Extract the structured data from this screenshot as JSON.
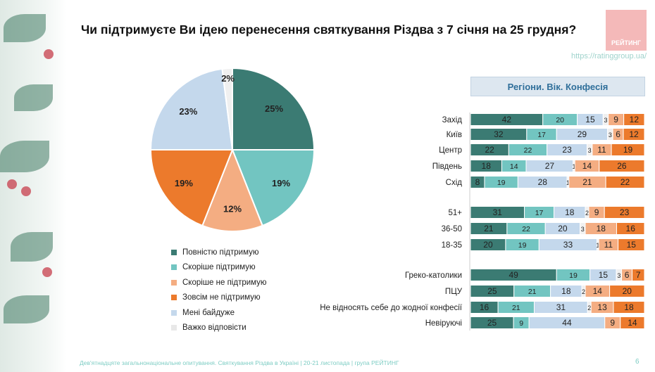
{
  "title": "Чи підтримуєте Ви ідею перенесення святкування Різдва з 7 січня на 25 грудня?",
  "logo_text": "РЕЙТИНГ",
  "url": "https://ratinggroup.ua/",
  "footer": "Дев'ятнадцяте загальнонаціональне опитування. Святкування Різдва в Україні | 20-21 листопада | група РЕЙТИНГ",
  "page_number": "6",
  "colors": {
    "full_support": "#3b7b73",
    "rather_support": "#72c5c1",
    "indifferent": "#c4d8ec",
    "hard_to_say": "#f0f0f0",
    "rather_not": "#f4ad82",
    "not_at_all": "#ec7a2c"
  },
  "chart_data": [
    {
      "type": "pie",
      "categories": [
        "Повністю підтримую",
        "Скоріше підтримую",
        "Скоріше не підтримую",
        "Зовсім не підтримую",
        "Мені байдуже",
        "Важко відповісти"
      ],
      "values": [
        25,
        19,
        12,
        19,
        23,
        2
      ],
      "labels": [
        "25%",
        "19%",
        "12%",
        "19%",
        "23%",
        "2%"
      ],
      "legend_position": "bottom"
    },
    {
      "type": "bar",
      "stacked": true,
      "orientation": "horizontal",
      "title": "Регіони. Вік. Конфесія",
      "series_order": [
        "Повністю підтримую",
        "Скоріше підтримую",
        "Мені байдуже",
        "Важко відповісти",
        "Скоріше не підтримую",
        "Зовсім не підтримую"
      ],
      "groups": [
        {
          "rows": [
            {
              "label": "Захід",
              "values": [
                42,
                20,
                15,
                3,
                9,
                12
              ]
            },
            {
              "label": "Київ",
              "values": [
                32,
                17,
                29,
                3,
                6,
                12
              ]
            },
            {
              "label": "Центр",
              "values": [
                22,
                22,
                23,
                3,
                11,
                19
              ]
            },
            {
              "label": "Південь",
              "values": [
                18,
                14,
                27,
                1,
                14,
                26
              ]
            },
            {
              "label": "Схід",
              "values": [
                8,
                19,
                28,
                1,
                21,
                22
              ]
            }
          ]
        },
        {
          "rows": [
            {
              "label": "51+",
              "values": [
                31,
                17,
                18,
                2,
                9,
                23
              ]
            },
            {
              "label": "36-50",
              "values": [
                21,
                22,
                20,
                3,
                18,
                16
              ]
            },
            {
              "label": "18-35",
              "values": [
                20,
                19,
                33,
                1,
                11,
                15
              ]
            }
          ]
        },
        {
          "rows": [
            {
              "label": "Греко-католики",
              "values": [
                49,
                19,
                15,
                3,
                6,
                7
              ]
            },
            {
              "label": "ПЦУ",
              "values": [
                25,
                21,
                18,
                2,
                14,
                20
              ]
            },
            {
              "label": "Не відносять себе до жодної конфесії",
              "values": [
                16,
                21,
                31,
                2,
                13,
                18
              ]
            },
            {
              "label": "Невіруючі",
              "values": [
                25,
                9,
                44,
                0,
                9,
                14
              ]
            }
          ]
        }
      ]
    }
  ]
}
